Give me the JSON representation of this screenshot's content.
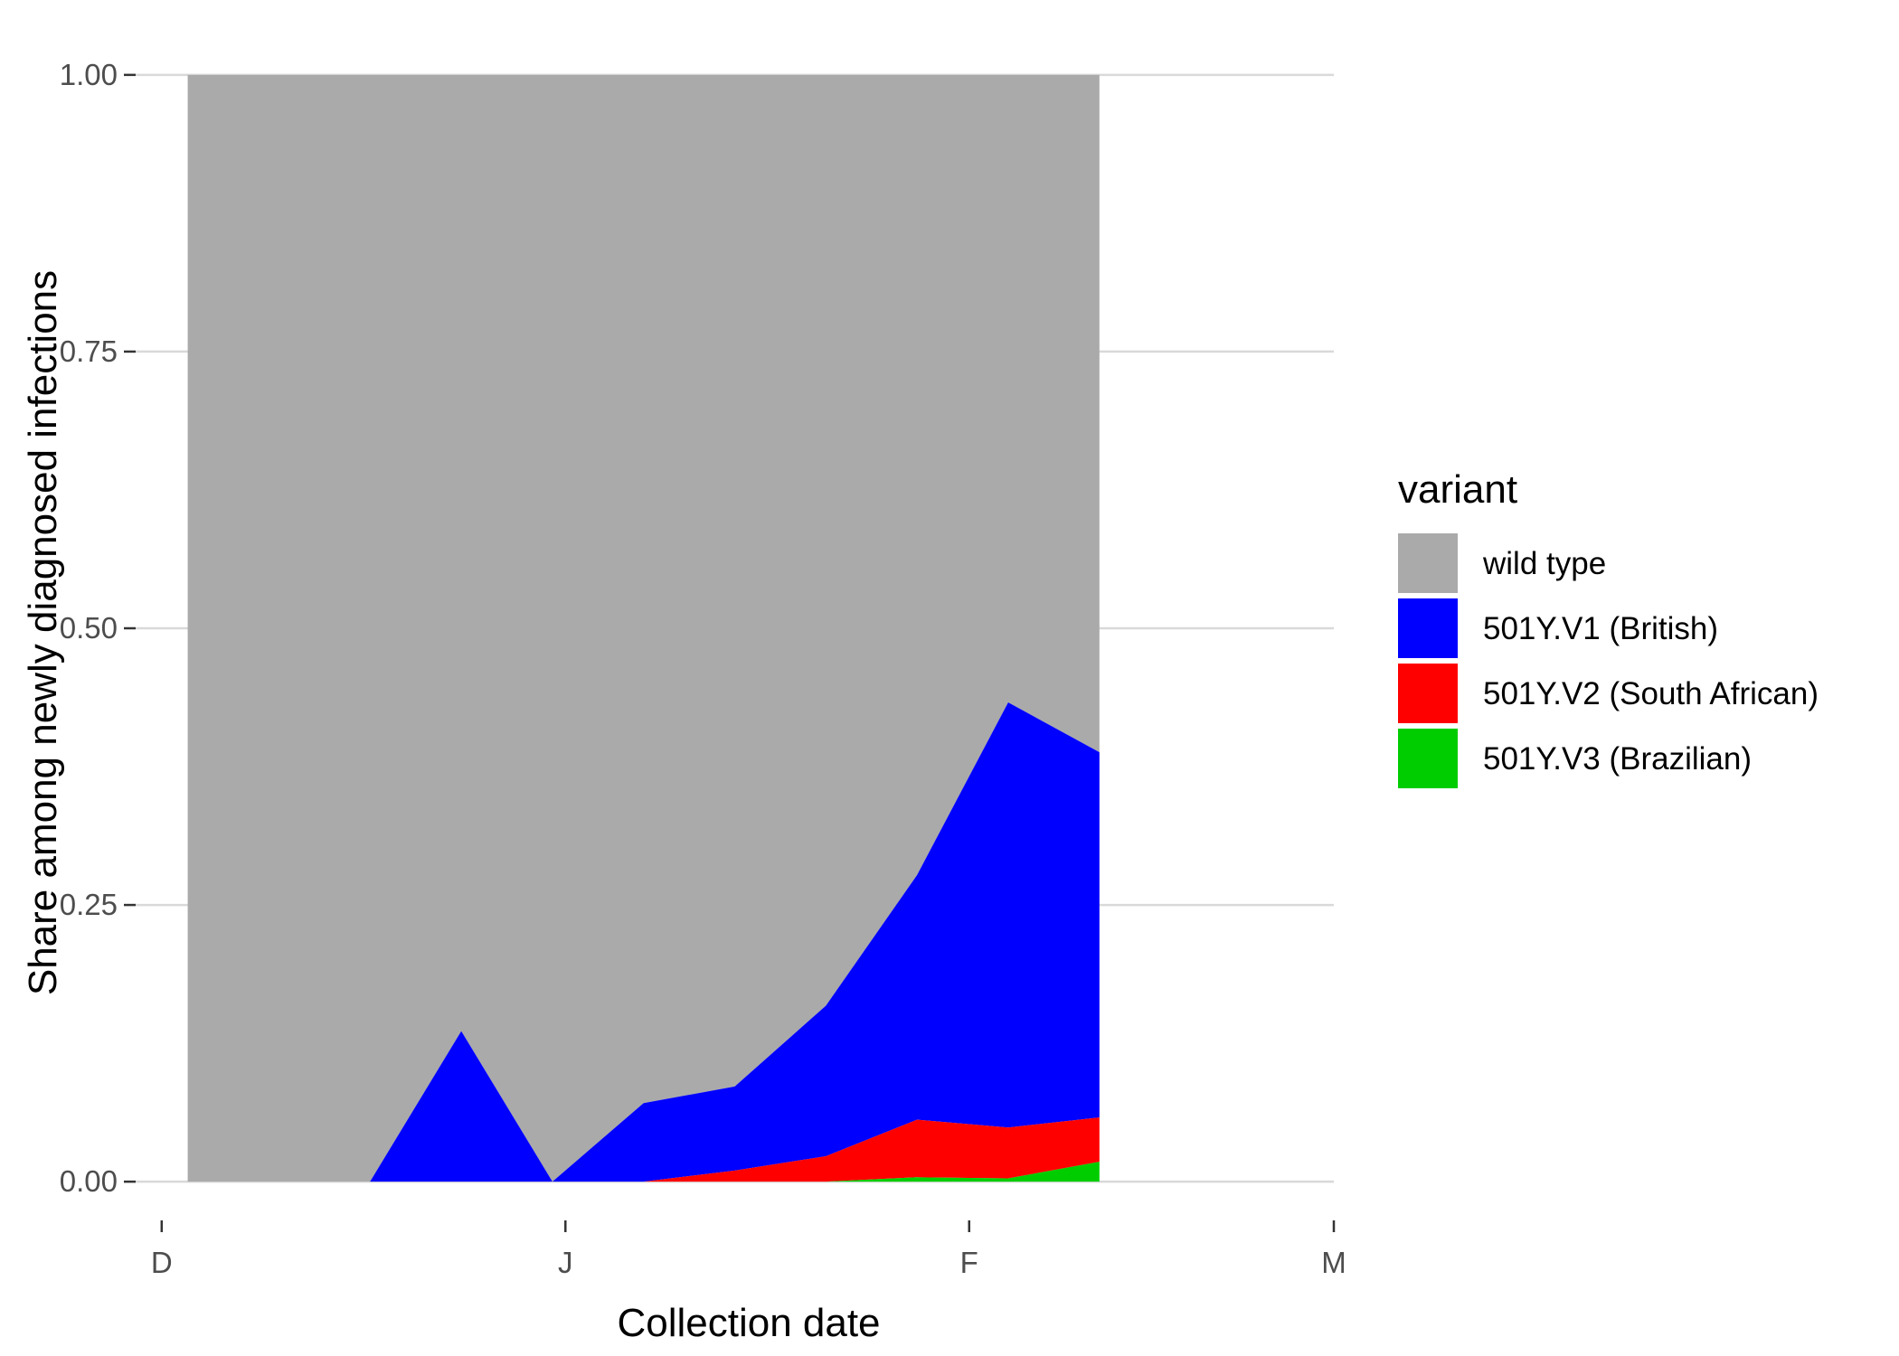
{
  "chart_data": {
    "type": "area",
    "stacked": true,
    "xlabel": "Collection date",
    "ylabel": "Share among newly diagnosed infections",
    "x_ticks": [
      {
        "date": "2020-12-01",
        "label": "D"
      },
      {
        "date": "2021-01-01",
        "label": "J"
      },
      {
        "date": "2021-02-01",
        "label": "F"
      },
      {
        "date": "2021-03-01",
        "label": "M"
      }
    ],
    "xlim": [
      "2020-11-29",
      "2021-03-01"
    ],
    "y_ticks": [
      {
        "value": 0,
        "label": "0.00"
      },
      {
        "value": 0.25,
        "label": "0.25"
      },
      {
        "value": 0.5,
        "label": "0.50"
      },
      {
        "value": 0.75,
        "label": "0.75"
      },
      {
        "value": 1,
        "label": "1.00"
      }
    ],
    "ylim": [
      -0.035,
      1.035
    ],
    "grid": "horizontal-major",
    "legend_position": "right",
    "legend_title": "variant",
    "x": [
      "2020-12-03",
      "2020-12-10",
      "2020-12-17",
      "2020-12-24",
      "2020-12-31",
      "2021-01-07",
      "2021-01-14",
      "2021-01-21",
      "2021-01-28",
      "2021-02-04",
      "2021-02-11"
    ],
    "series": [
      {
        "name": "wild type",
        "color": "#aaaaaa",
        "values": [
          1.0,
          1.0,
          1.0,
          0.864,
          1.0,
          0.929,
          0.914,
          0.841,
          0.723,
          0.567,
          0.612
        ]
      },
      {
        "name": "501Y.V1 (British)",
        "color": "#0000ff",
        "values": [
          0.0,
          0.0,
          0.0,
          0.136,
          0.0,
          0.071,
          0.076,
          0.136,
          0.221,
          0.384,
          0.33
        ]
      },
      {
        "name": "501Y.V2 (South African)",
        "color": "#ff0000",
        "values": [
          0.0,
          0.0,
          0.0,
          0.0,
          0.0,
          0.0,
          0.01,
          0.023,
          0.052,
          0.046,
          0.04
        ]
      },
      {
        "name": "501Y.V3 (Brazilian)",
        "color": "#00cd00",
        "values": [
          0.0,
          0.0,
          0.0,
          0.0,
          0.0,
          0.0,
          0.0,
          0.0,
          0.004,
          0.003,
          0.018
        ]
      }
    ]
  }
}
